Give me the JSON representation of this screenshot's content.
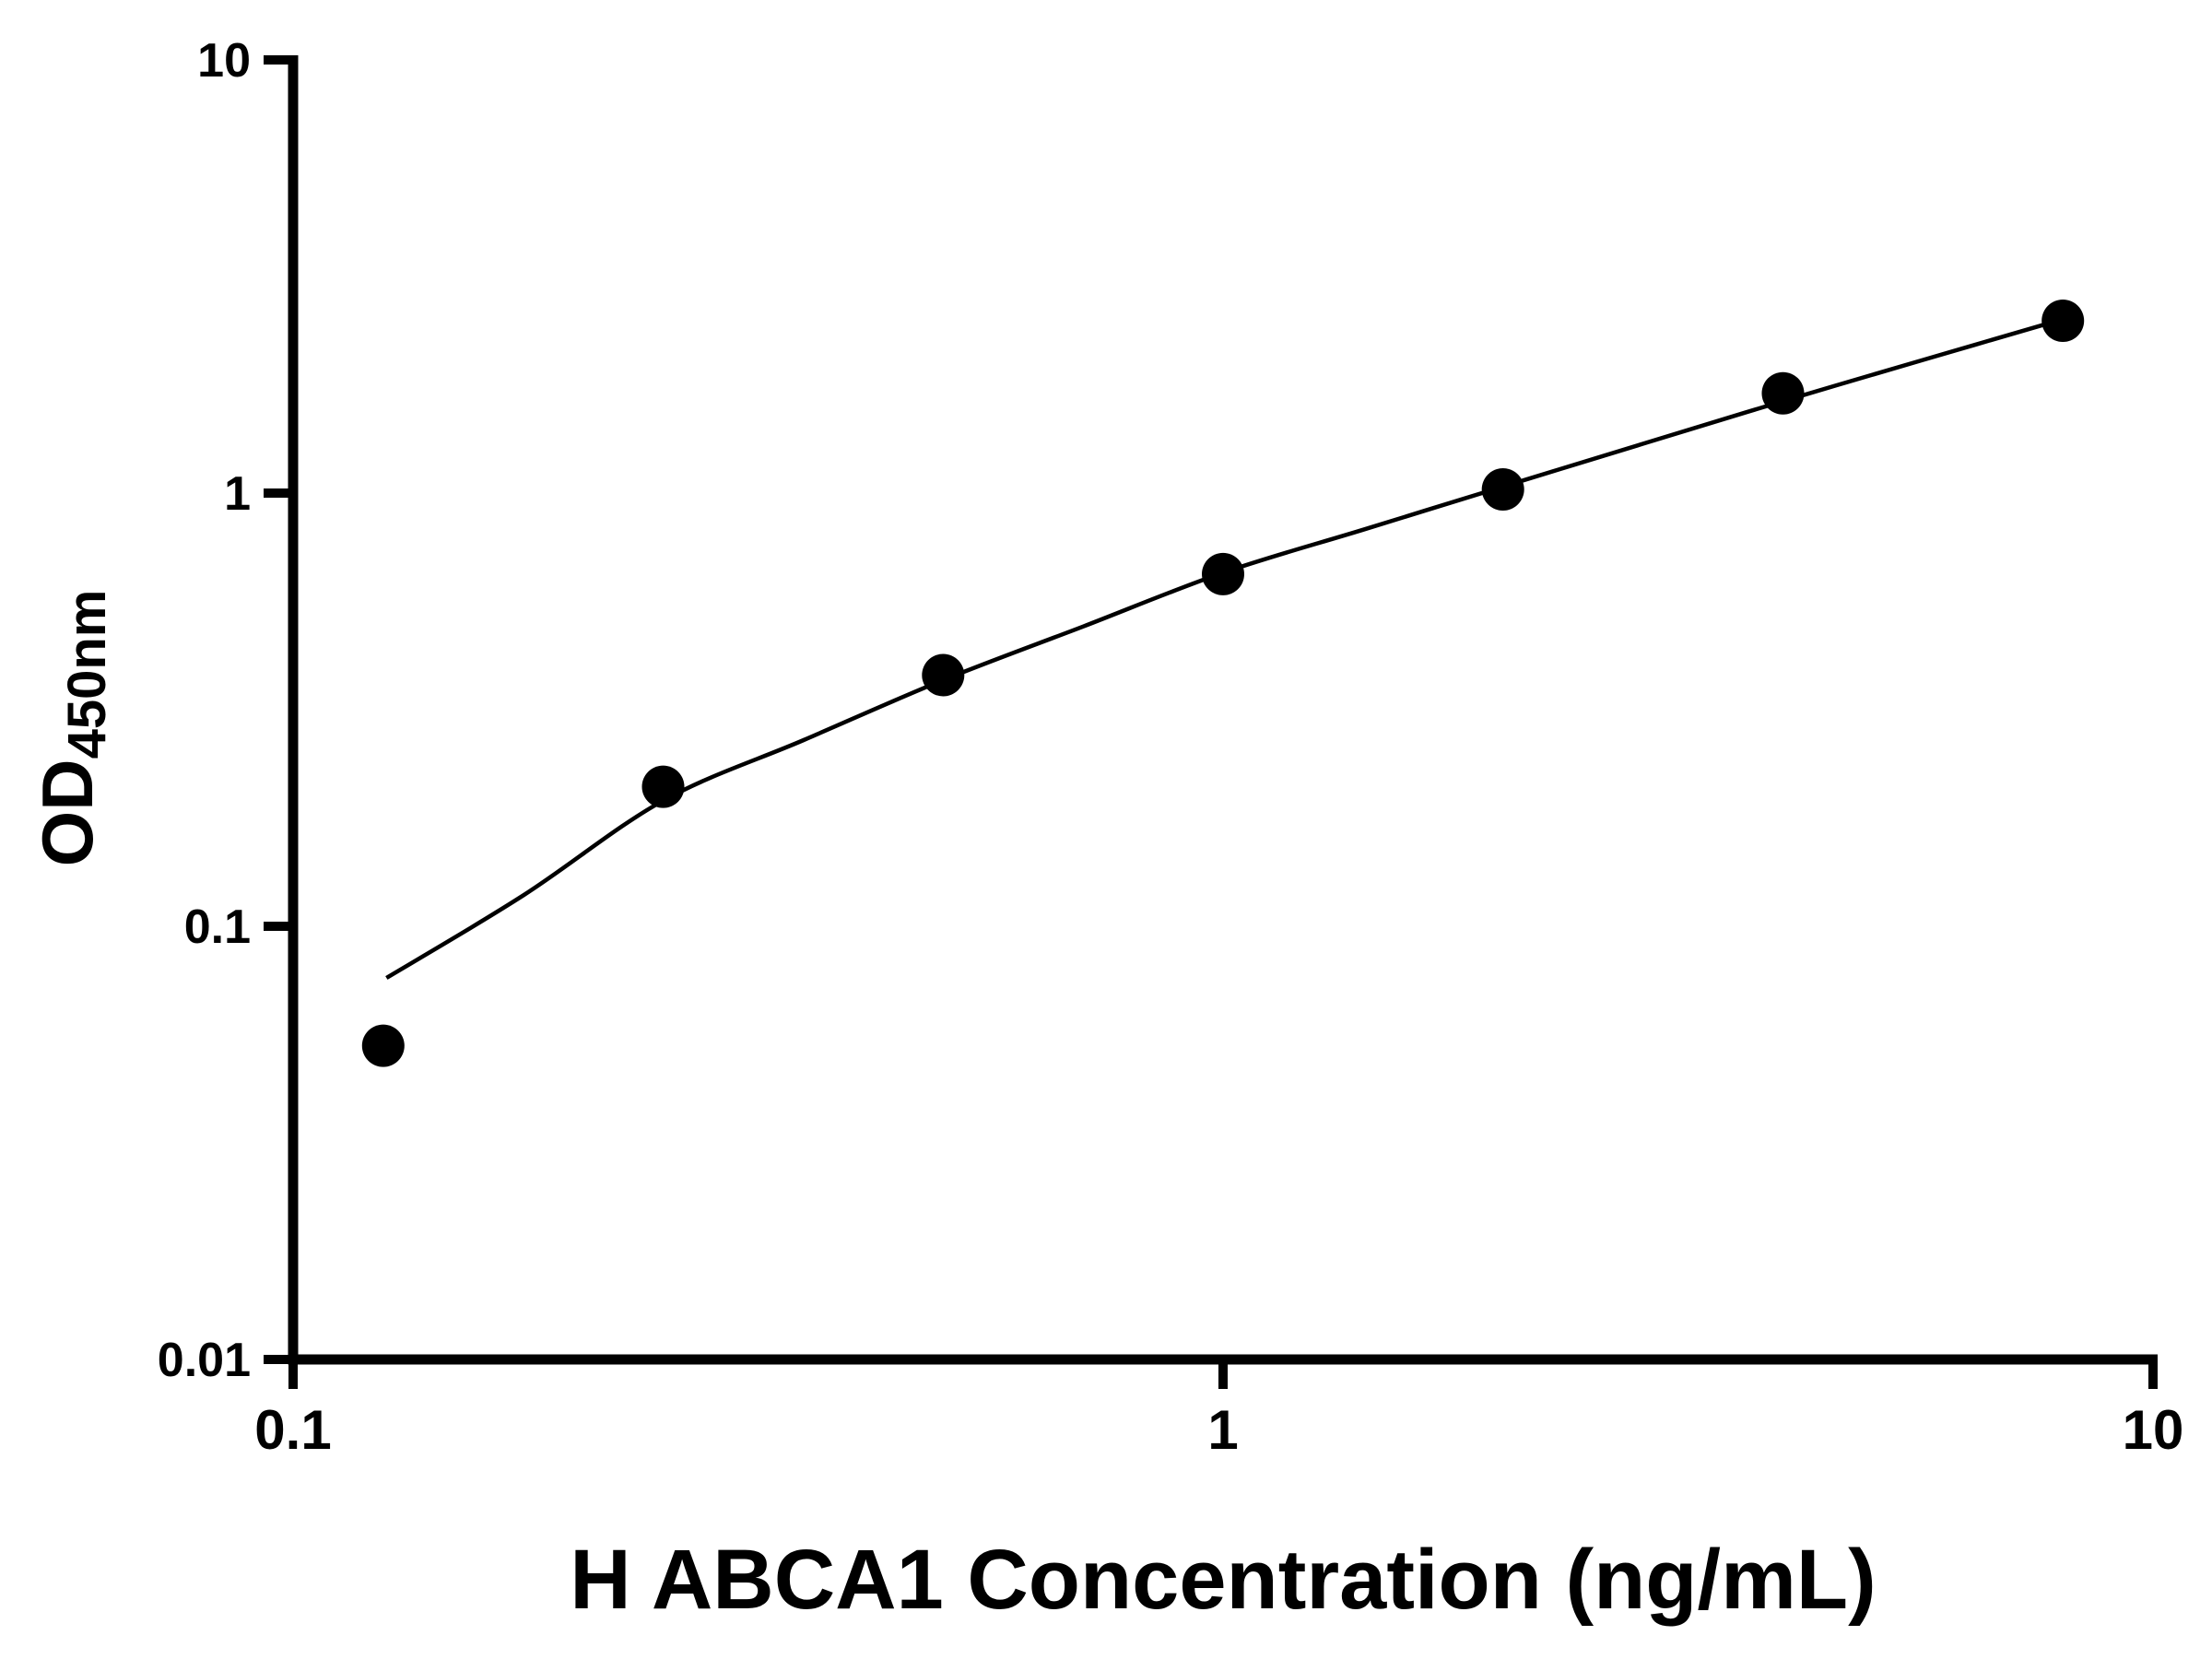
{
  "page": {
    "background": "#ffffff"
  },
  "chart_data": {
    "type": "scatter",
    "title": "",
    "xlabel": "H ABCA1 Concentration (ng/mL)",
    "ylabel_main": "OD",
    "ylabel_sub": "450nm",
    "x_scale": "log",
    "y_scale": "log",
    "xlim": [
      0.1,
      10
    ],
    "ylim": [
      0.01,
      10
    ],
    "grid": false,
    "legend": "none",
    "x_ticks": [
      {
        "value": 0.1,
        "label": "0.1"
      },
      {
        "value": 1,
        "label": "1"
      },
      {
        "value": 10,
        "label": "10"
      }
    ],
    "y_ticks": [
      {
        "value": 0.01,
        "label": "0.01"
      },
      {
        "value": 0.1,
        "label": "0.1"
      },
      {
        "value": 1,
        "label": "1"
      },
      {
        "value": 10,
        "label": "10"
      }
    ],
    "series": [
      {
        "marker": "circle",
        "color": "#000000",
        "points": [
          {
            "x": 0.125,
            "y": 0.053
          },
          {
            "x": 0.25,
            "y": 0.21
          },
          {
            "x": 0.5,
            "y": 0.38
          },
          {
            "x": 1,
            "y": 0.65
          },
          {
            "x": 2,
            "y": 1.02
          },
          {
            "x": 4,
            "y": 1.7
          },
          {
            "x": 8,
            "y": 2.5
          }
        ]
      }
    ],
    "fit_curve": {
      "color": "#000000",
      "samples": [
        {
          "x": 0.126,
          "y": 0.076
        },
        {
          "x": 0.177,
          "y": 0.118
        },
        {
          "x": 0.25,
          "y": 0.195
        },
        {
          "x": 0.354,
          "y": 0.269
        },
        {
          "x": 0.5,
          "y": 0.37
        },
        {
          "x": 0.707,
          "y": 0.492
        },
        {
          "x": 1,
          "y": 0.655
        },
        {
          "x": 1.414,
          "y": 0.823
        },
        {
          "x": 2,
          "y": 1.035
        },
        {
          "x": 2.83,
          "y": 1.3
        },
        {
          "x": 4,
          "y": 1.63
        },
        {
          "x": 5.66,
          "y": 2.03
        },
        {
          "x": 8,
          "y": 2.52
        }
      ]
    },
    "colors": {
      "axis": "#000000",
      "text": "#000000",
      "marker": "#000000",
      "line": "#000000",
      "background": "#ffffff"
    }
  }
}
